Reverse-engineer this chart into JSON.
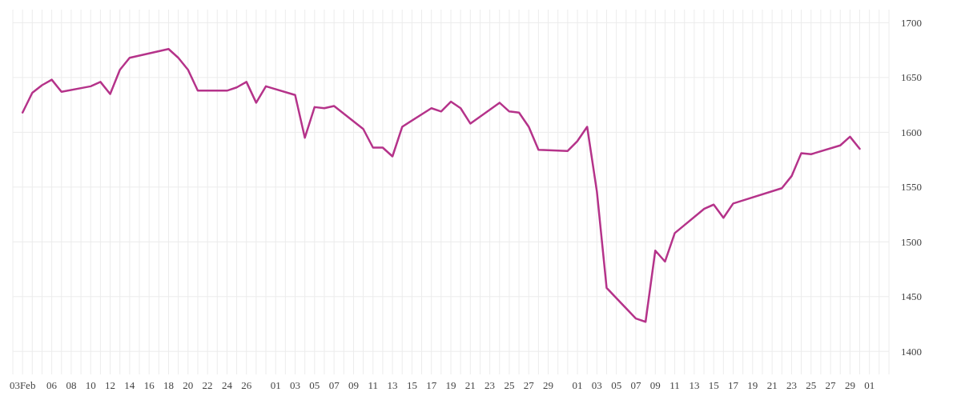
{
  "chart_data": {
    "type": "line",
    "grid": true,
    "marker": "none",
    "line_style": "solid",
    "x": [
      "--02-03",
      "--02-04",
      "--02-05",
      "--02-06",
      "--02-07",
      "--02-10",
      "--02-11",
      "--02-12",
      "--02-13",
      "--02-14",
      "--02-18",
      "--02-19",
      "--02-20",
      "--02-21",
      "--02-24",
      "--02-25",
      "--02-26",
      "--02-27",
      "--02-28",
      "--03-03",
      "--03-04",
      "--03-05",
      "--03-06",
      "--03-07",
      "--03-10",
      "--03-11",
      "--03-12",
      "--03-13",
      "--03-14",
      "--03-17",
      "--03-18",
      "--03-19",
      "--03-20",
      "--03-21",
      "--03-24",
      "--03-25",
      "--03-26",
      "--03-27",
      "--03-28",
      "--03-31",
      "--04-01",
      "--04-02",
      "--04-03",
      "--04-04",
      "--04-07",
      "--04-08",
      "--04-09",
      "--04-10",
      "--04-11",
      "--04-14",
      "--04-15",
      "--04-16",
      "--04-17",
      "--04-22",
      "--04-23",
      "--04-24",
      "--04-25",
      "--04-28",
      "--04-29",
      "--04-30"
    ],
    "series": [
      {
        "color": "#b5338a",
        "values": [
          1618,
          1636,
          1643,
          1648,
          1637,
          1642,
          1646,
          1635,
          1657,
          1668,
          1676,
          1668,
          1657,
          1638,
          1638,
          1641,
          1646,
          1627,
          1642,
          1634,
          1595,
          1623,
          1622,
          1624,
          1603,
          1586,
          1586,
          1578,
          1605,
          1622,
          1619,
          1628,
          1622,
          1608,
          1627,
          1619,
          1618,
          1605,
          1584,
          1583,
          1592,
          1605,
          1546,
          1458,
          1430,
          1427,
          1492,
          1482,
          1508,
          1530,
          1534,
          1522,
          1535,
          1549,
          1560,
          1581,
          1580,
          1588,
          1596,
          1585
        ]
      }
    ],
    "xlim": [
      "--02-02",
      "--05-03"
    ],
    "xticks": [
      {
        "value": "--02-02",
        "label": null
      },
      {
        "value": "--02-03",
        "label": "03Feb"
      },
      {
        "value": "--02-04",
        "label": null
      },
      {
        "value": "--02-05",
        "label": null
      },
      {
        "value": "--02-06",
        "label": "06"
      },
      {
        "value": "--02-07",
        "label": null
      },
      {
        "value": "--02-08",
        "label": "08"
      },
      {
        "value": "--02-09",
        "label": null
      },
      {
        "value": "--02-10",
        "label": "10"
      },
      {
        "value": "--02-11",
        "label": null
      },
      {
        "value": "--02-12",
        "label": "12"
      },
      {
        "value": "--02-13",
        "label": null
      },
      {
        "value": "--02-14",
        "label": "14"
      },
      {
        "value": "--02-15",
        "label": null
      },
      {
        "value": "--02-16",
        "label": "16"
      },
      {
        "value": "--02-17",
        "label": null
      },
      {
        "value": "--02-18",
        "label": "18"
      },
      {
        "value": "--02-19",
        "label": null
      },
      {
        "value": "--02-20",
        "label": "20"
      },
      {
        "value": "--02-21",
        "label": null
      },
      {
        "value": "--02-22",
        "label": "22"
      },
      {
        "value": "--02-23",
        "label": null
      },
      {
        "value": "--02-24",
        "label": "24"
      },
      {
        "value": "--02-25",
        "label": null
      },
      {
        "value": "--02-26",
        "label": "26"
      },
      {
        "value": "--02-27",
        "label": null
      },
      {
        "value": "--02-28",
        "label": null
      },
      {
        "value": "--03-01",
        "label": "01"
      },
      {
        "value": "--03-02",
        "label": null
      },
      {
        "value": "--03-03",
        "label": "03"
      },
      {
        "value": "--03-04",
        "label": null
      },
      {
        "value": "--03-05",
        "label": "05"
      },
      {
        "value": "--03-06",
        "label": null
      },
      {
        "value": "--03-07",
        "label": "07"
      },
      {
        "value": "--03-08",
        "label": null
      },
      {
        "value": "--03-09",
        "label": "09"
      },
      {
        "value": "--03-10",
        "label": null
      },
      {
        "value": "--03-11",
        "label": "11"
      },
      {
        "value": "--03-12",
        "label": null
      },
      {
        "value": "--03-13",
        "label": "13"
      },
      {
        "value": "--03-14",
        "label": null
      },
      {
        "value": "--03-15",
        "label": "15"
      },
      {
        "value": "--03-16",
        "label": null
      },
      {
        "value": "--03-17",
        "label": "17"
      },
      {
        "value": "--03-18",
        "label": null
      },
      {
        "value": "--03-19",
        "label": "19"
      },
      {
        "value": "--03-20",
        "label": null
      },
      {
        "value": "--03-21",
        "label": "21"
      },
      {
        "value": "--03-22",
        "label": null
      },
      {
        "value": "--03-23",
        "label": "23"
      },
      {
        "value": "--03-24",
        "label": null
      },
      {
        "value": "--03-25",
        "label": "25"
      },
      {
        "value": "--03-26",
        "label": null
      },
      {
        "value": "--03-27",
        "label": "27"
      },
      {
        "value": "--03-28",
        "label": null
      },
      {
        "value": "--03-29",
        "label": "29"
      },
      {
        "value": "--03-30",
        "label": null
      },
      {
        "value": "--03-31",
        "label": null
      },
      {
        "value": "--04-01",
        "label": "01"
      },
      {
        "value": "--04-02",
        "label": null
      },
      {
        "value": "--04-03",
        "label": "03"
      },
      {
        "value": "--04-04",
        "label": null
      },
      {
        "value": "--04-05",
        "label": "05"
      },
      {
        "value": "--04-06",
        "label": null
      },
      {
        "value": "--04-07",
        "label": "07"
      },
      {
        "value": "--04-08",
        "label": null
      },
      {
        "value": "--04-09",
        "label": "09"
      },
      {
        "value": "--04-10",
        "label": null
      },
      {
        "value": "--04-11",
        "label": "11"
      },
      {
        "value": "--04-12",
        "label": null
      },
      {
        "value": "--04-13",
        "label": "13"
      },
      {
        "value": "--04-14",
        "label": null
      },
      {
        "value": "--04-15",
        "label": "15"
      },
      {
        "value": "--04-16",
        "label": null
      },
      {
        "value": "--04-17",
        "label": "17"
      },
      {
        "value": "--04-18",
        "label": null
      },
      {
        "value": "--04-19",
        "label": "19"
      },
      {
        "value": "--04-20",
        "label": null
      },
      {
        "value": "--04-21",
        "label": "21"
      },
      {
        "value": "--04-22",
        "label": null
      },
      {
        "value": "--04-23",
        "label": "23"
      },
      {
        "value": "--04-24",
        "label": null
      },
      {
        "value": "--04-25",
        "label": "25"
      },
      {
        "value": "--04-26",
        "label": null
      },
      {
        "value": "--04-27",
        "label": "27"
      },
      {
        "value": "--04-28",
        "label": null
      },
      {
        "value": "--04-29",
        "label": "29"
      },
      {
        "value": "--04-30",
        "label": null
      },
      {
        "value": "--05-01",
        "label": "01"
      },
      {
        "value": "--05-02",
        "label": null
      },
      {
        "value": "--05-03",
        "label": null
      }
    ],
    "ylim": [
      1379,
      1712
    ],
    "yticks": [
      1400,
      1450,
      1500,
      1550,
      1600,
      1650,
      1700
    ]
  }
}
